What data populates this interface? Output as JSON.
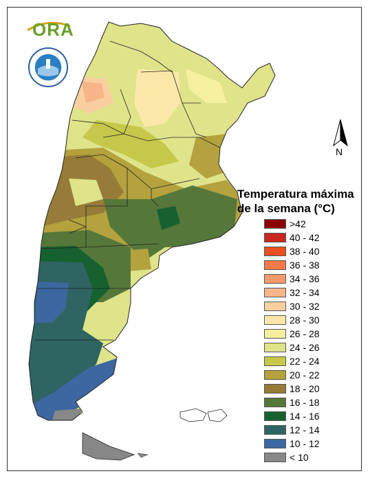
{
  "logos": {
    "ora_text": "ORA",
    "smn_seal": "Servicio Meteorológico Nacional Argentina"
  },
  "north_arrow": {
    "label": "N",
    "icon": "north-arrow-icon"
  },
  "legend": {
    "title_line1": "Temperatura máxima",
    "title_line2": "de la semana (°C)",
    "items": [
      {
        "label": ">42",
        "color": "#8b0000"
      },
      {
        "label": "40 - 42",
        "color": "#c8261e"
      },
      {
        "label": "38 - 40",
        "color": "#e8501f"
      },
      {
        "label": "36 - 38",
        "color": "#f47a4a"
      },
      {
        "label": "34 - 36",
        "color": "#f79a6b"
      },
      {
        "label": "32 - 34",
        "color": "#f8b58a"
      },
      {
        "label": "30 - 32",
        "color": "#f9cfa0"
      },
      {
        "label": "28 - 30",
        "color": "#fbe8a8"
      },
      {
        "label": "26 - 28",
        "color": "#f4f0a0"
      },
      {
        "label": "24 - 26",
        "color": "#dfe38a"
      },
      {
        "label": "22 - 24",
        "color": "#c5c84a"
      },
      {
        "label": "20 - 22",
        "color": "#b3a23d"
      },
      {
        "label": "18 - 20",
        "color": "#967c38"
      },
      {
        "label": "16 - 18",
        "color": "#55783a"
      },
      {
        "label": "14 - 16",
        "color": "#176130"
      },
      {
        "label": "12 - 14",
        "color": "#2e6462"
      },
      {
        "label": "10 - 12",
        "color": "#3c67a0"
      },
      {
        "label": "< 10",
        "color": "#888888"
      }
    ]
  }
}
